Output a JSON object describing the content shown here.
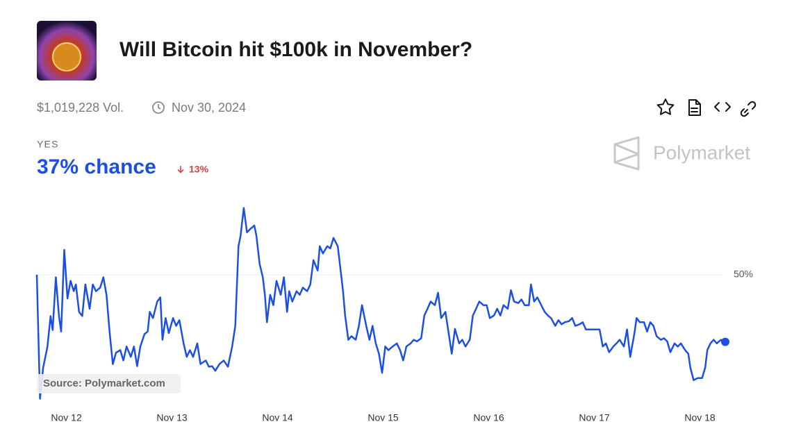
{
  "header": {
    "title": "Will Bitcoin hit $100k in November?",
    "volume": "$1,019,228 Vol.",
    "end_date": "Nov 30, 2024"
  },
  "market": {
    "outcome": "YES",
    "chance": "37% chance",
    "change": "13%",
    "brand": "Polymarket",
    "source": "Source: Polymarket.com"
  },
  "chart_data": {
    "type": "line",
    "color": "#1b4fe4",
    "x": [
      11.72,
      11.75,
      11.78,
      11.82,
      11.85,
      11.87,
      11.9,
      11.93,
      11.95,
      11.98,
      12.01,
      12.04,
      12.07,
      12.09,
      12.12,
      12.15,
      12.18,
      12.22,
      12.25,
      12.28,
      12.32,
      12.35,
      12.38,
      12.41,
      12.44,
      12.47,
      12.51,
      12.54,
      12.57,
      12.61,
      12.64,
      12.67,
      12.7,
      12.74,
      12.77,
      12.79,
      12.82,
      12.86,
      12.89,
      12.91,
      12.94,
      12.97,
      13.01,
      13.04,
      13.07,
      13.11,
      13.14,
      13.17,
      13.2,
      13.24,
      13.27,
      13.32,
      13.35,
      13.38,
      13.41,
      13.45,
      13.49,
      13.53,
      13.57,
      13.6,
      13.63,
      13.65,
      13.68,
      13.71,
      13.74,
      13.78,
      13.8,
      13.83,
      13.86,
      13.88,
      13.9,
      13.93,
      13.96,
      13.99,
      14.03,
      14.06,
      14.09,
      14.11,
      14.14,
      14.18,
      14.21,
      14.24,
      14.28,
      14.31,
      14.34,
      14.38,
      14.4,
      14.43,
      14.47,
      14.5,
      14.53,
      14.57,
      14.59,
      14.62,
      14.64,
      14.67,
      14.7,
      14.74,
      14.77,
      14.8,
      14.84,
      14.87,
      14.9,
      14.93,
      14.96,
      14.99,
      15.02,
      15.05,
      15.09,
      15.13,
      15.16,
      15.19,
      15.22,
      15.26,
      15.29,
      15.32,
      15.36,
      15.39,
      15.42,
      15.45,
      15.49,
      15.52,
      15.55,
      15.59,
      15.62,
      15.65,
      15.68,
      15.72,
      15.75,
      15.78,
      15.82,
      15.85,
      15.88,
      15.91,
      15.95,
      15.98,
      16.01,
      16.05,
      16.08,
      16.11,
      16.14,
      16.18,
      16.21,
      16.24,
      16.28,
      16.31,
      16.34,
      16.38,
      16.4,
      16.43,
      16.46,
      16.49,
      16.53,
      16.56,
      16.59,
      16.63,
      16.66,
      16.69,
      16.72,
      16.76,
      16.79,
      16.82,
      16.86,
      16.89,
      16.92,
      16.97,
      17.01,
      17.05,
      17.08,
      17.11,
      17.14,
      17.18,
      17.21,
      17.24,
      17.28,
      17.31,
      17.34,
      17.38,
      17.4,
      17.43,
      17.47,
      17.5,
      17.53,
      17.56,
      17.59,
      17.63,
      17.66,
      17.69,
      17.72,
      17.76,
      17.79,
      17.82,
      17.86,
      17.89,
      17.91,
      17.94,
      17.98,
      18.02,
      18.05,
      18.07,
      18.1,
      18.13,
      18.16,
      18.2,
      18.24
    ],
    "values": [
      50,
      26,
      32,
      36,
      42,
      39.3,
      49.5,
      42,
      39,
      54.8,
      45.4,
      48.8,
      46.8,
      48.1,
      42.8,
      42,
      48.1,
      43.4,
      48.1,
      46.8,
      47.5,
      49.5,
      46.1,
      38.7,
      32.7,
      34.9,
      35.4,
      33.4,
      36.1,
      34.1,
      36.1,
      32.3,
      36.1,
      38.5,
      39,
      42.8,
      41.6,
      44.8,
      45.6,
      37.4,
      41.6,
      38.7,
      41.6,
      40.1,
      41.2,
      36.7,
      34.1,
      35.4,
      34.1,
      36.7,
      32.7,
      33.4,
      32.2,
      32.3,
      31.4,
      32.7,
      33.4,
      32.2,
      36.1,
      40.1,
      55.5,
      57.5,
      62.9,
      58.2,
      58.8,
      59.5,
      57.5,
      52.1,
      49.5,
      46.1,
      40.8,
      46.1,
      44.1,
      48.8,
      46.1,
      49.5,
      42.8,
      46.8,
      44.8,
      46.8,
      46.1,
      47.5,
      46.8,
      48.1,
      52.8,
      50.8,
      55.5,
      54.1,
      55.5,
      55.1,
      57.1,
      55.5,
      52.1,
      46.8,
      42.1,
      37.4,
      38.1,
      37.4,
      40.1,
      44.1,
      40.1,
      37.4,
      40.1,
      36.7,
      34.7,
      31,
      36.1,
      35.4,
      36.1,
      36.7,
      35.4,
      33.4,
      36.1,
      36.7,
      37.4,
      37.1,
      37.7,
      42.1,
      43.4,
      44.8,
      44.1,
      46.5,
      41.6,
      42.8,
      38.7,
      34.7,
      39.5,
      36.7,
      37.4,
      36.1,
      37.4,
      42.1,
      43.4,
      44.8,
      44.1,
      44.1,
      41.6,
      42.1,
      43.4,
      42.1,
      44.1,
      43.4,
      47,
      44.8,
      44.5,
      45.2,
      44.1,
      44.1,
      48.1,
      44.8,
      45.6,
      44.4,
      42.8,
      42.1,
      41.6,
      40.1,
      41.2,
      40.4,
      40.8,
      41,
      41.6,
      40.1,
      40.4,
      40.8,
      39.4,
      39.4,
      39.4,
      39.4,
      36.1,
      36.7,
      35,
      36.1,
      36.7,
      37.4,
      36.1,
      39.4,
      34.1,
      38.7,
      41.6,
      40.8,
      40.8,
      39,
      40.8,
      40.1,
      38.1,
      37.4,
      37.7,
      37.1,
      35,
      36.7,
      36.1,
      36.7,
      35.4,
      34.7,
      32,
      29.6,
      30,
      30,
      32,
      35.4,
      36.7,
      37.4,
      36.7,
      37.4,
      37
    ],
    "xlim": [
      11.72,
      18.24
    ],
    "xticks": [
      {
        "value": 12,
        "label": "Nov 12"
      },
      {
        "value": 13,
        "label": "Nov 13"
      },
      {
        "value": 14,
        "label": "Nov 14"
      },
      {
        "value": 15,
        "label": "Nov 15"
      },
      {
        "value": 16,
        "label": "Nov 16"
      },
      {
        "value": 17,
        "label": "Nov 17"
      },
      {
        "value": 18,
        "label": "Nov 18"
      }
    ],
    "ylim": [
      25,
      65
    ],
    "yticks": [
      {
        "value": 50,
        "label": "50%"
      }
    ],
    "grid": true
  }
}
